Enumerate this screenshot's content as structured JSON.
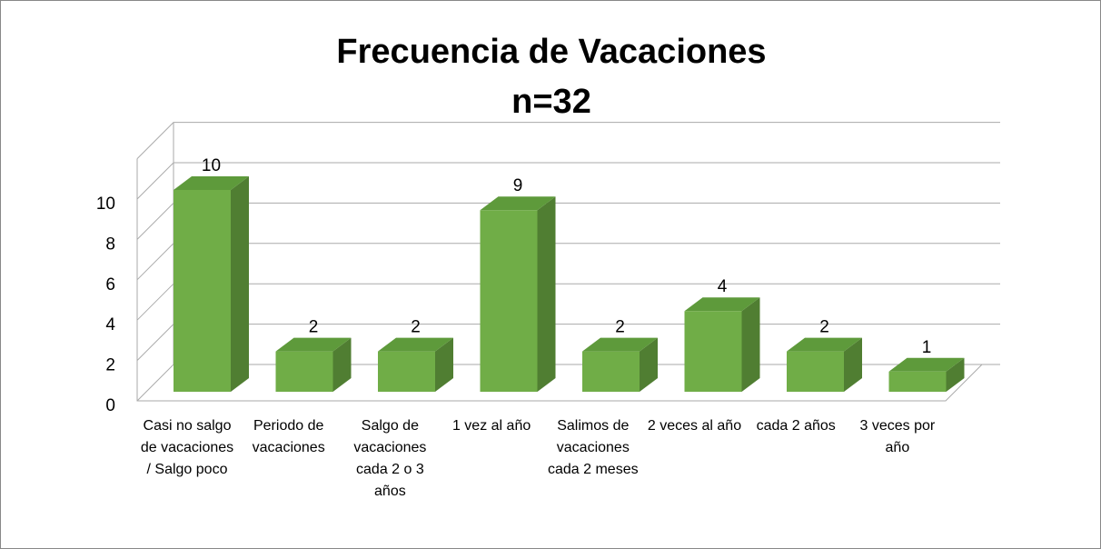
{
  "chart_data": {
    "type": "bar3d",
    "title": "Frecuencia de Vacaciones",
    "subtitle": "n=32",
    "categories": [
      "Casi no salgo de vacaciones / Salgo poco",
      "Periodo de vacaciones",
      "Salgo de vacaciones cada 2 o 3 años",
      "1 vez al año",
      "Salimos de vacaciones cada 2 meses",
      "2 veces al año",
      "cada 2 años",
      "3 veces por año"
    ],
    "values": [
      10,
      2,
      2,
      9,
      2,
      4,
      2,
      1
    ],
    "color": "#70ad47",
    "ylim": [
      0,
      12
    ],
    "yticks": [
      0,
      2,
      4,
      6,
      8,
      10
    ],
    "grid": true
  }
}
